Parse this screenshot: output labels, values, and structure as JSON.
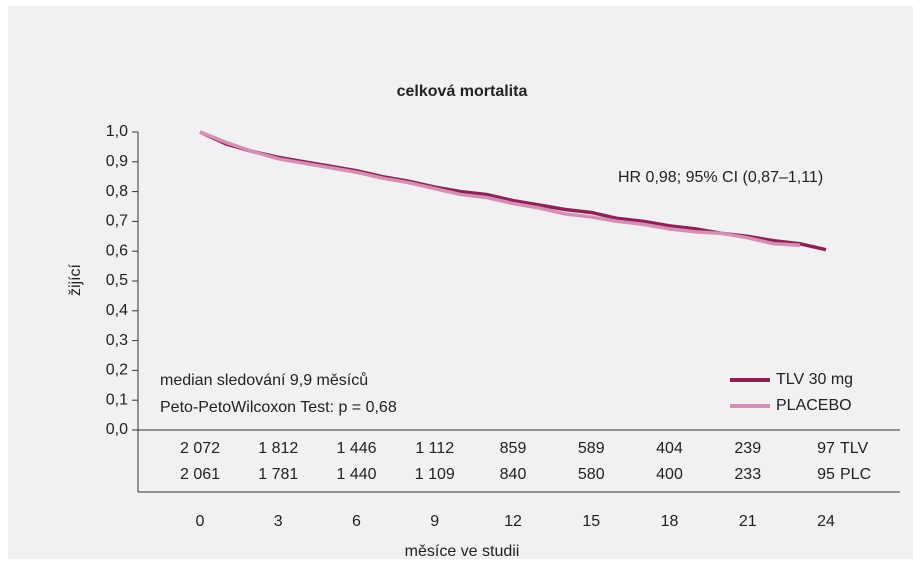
{
  "chart_data": {
    "type": "line",
    "title": "celková mortalita",
    "xlabel": "měsíce ve studii",
    "ylabel": "žijící",
    "x": [
      0,
      1,
      2,
      3,
      4,
      5,
      6,
      7,
      8,
      9,
      10,
      11,
      12,
      13,
      14,
      15,
      16,
      17,
      18,
      19,
      20,
      21,
      22,
      23,
      24
    ],
    "xlim": [
      0,
      24
    ],
    "xticks": [
      0,
      3,
      6,
      9,
      12,
      15,
      18,
      21,
      24
    ],
    "ylim": [
      0,
      1
    ],
    "yticks": [
      {
        "value": 0,
        "label": "0,0"
      },
      {
        "value": 0.1,
        "label": "0,1"
      },
      {
        "value": 0.2,
        "label": "0,2"
      },
      {
        "value": 0.3,
        "label": "0,3"
      },
      {
        "value": 0.4,
        "label": "0,4"
      },
      {
        "value": 0.5,
        "label": "0,5"
      },
      {
        "value": 0.6,
        "label": "0,6"
      },
      {
        "value": 0.7,
        "label": "0,7"
      },
      {
        "value": 0.8,
        "label": "0,8"
      },
      {
        "value": 0.9,
        "label": "0,9"
      },
      {
        "value": 1,
        "label": "1,0"
      }
    ],
    "series": [
      {
        "name": "TLV 30 mg",
        "color": "#8b2357",
        "values": [
          1.0,
          0.96,
          0.935,
          0.915,
          0.9,
          0.885,
          0.87,
          0.85,
          0.835,
          0.815,
          0.8,
          0.79,
          0.77,
          0.755,
          0.74,
          0.73,
          0.71,
          0.7,
          0.685,
          0.675,
          0.66,
          0.65,
          0.635,
          0.625,
          0.605
        ]
      },
      {
        "name": "PLACEBO",
        "color": "#d490b3",
        "values": [
          1.0,
          0.965,
          0.935,
          0.91,
          0.895,
          0.88,
          0.865,
          0.845,
          0.83,
          0.81,
          0.79,
          0.78,
          0.76,
          0.745,
          0.725,
          0.715,
          0.7,
          0.69,
          0.675,
          0.665,
          0.66,
          0.645,
          0.625,
          0.62,
          null
        ]
      }
    ],
    "annotations": [
      "HR 0,98; 95% CI (0,87–1,11)",
      "median sledování 9,9 měsíců",
      "Peto-PetoWilcoxon Test: p = 0,68"
    ],
    "at_risk": [
      {
        "name": "TLV",
        "values": [
          2072,
          1812,
          1446,
          1112,
          859,
          589,
          404,
          239,
          97
        ],
        "value_labels": [
          "2 072",
          "1 812",
          "1 446",
          "1 112",
          "859",
          "589",
          "404",
          "239",
          "97"
        ]
      },
      {
        "name": "PLC",
        "values": [
          2061,
          1781,
          1440,
          1109,
          840,
          580,
          400,
          233,
          95
        ],
        "value_labels": [
          "2 061",
          "1 781",
          "1 440",
          "1 109",
          "840",
          "580",
          "400",
          "233",
          "95"
        ]
      }
    ]
  }
}
